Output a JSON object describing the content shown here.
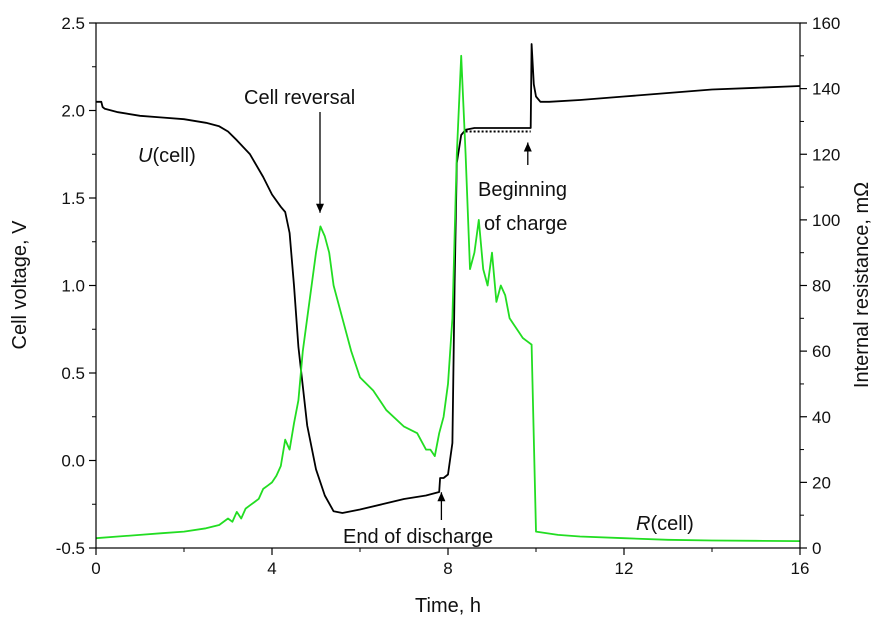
{
  "chart_data": {
    "type": "line",
    "xlabel": "Time, h",
    "ylabel_left": "Cell voltage, V",
    "ylabel_right": "Internal resistance, mΩ",
    "xlim": [
      0,
      16
    ],
    "ylim_left": [
      -0.5,
      2.5
    ],
    "ylim_right": [
      0,
      160
    ],
    "x_ticks": [
      "0",
      "4",
      "8",
      "12",
      "16"
    ],
    "y_left_ticks": [
      "-0.5",
      "0.0",
      "0.5",
      "1.0",
      "1.5",
      "2.0",
      "2.5"
    ],
    "y_right_ticks": [
      "0",
      "20",
      "40",
      "60",
      "80",
      "100",
      "120",
      "140",
      "160"
    ],
    "grid": false,
    "series": [
      {
        "name": "U(cell)",
        "axis": "left",
        "color": "#000000",
        "x": [
          0,
          0.05,
          0.12,
          0.15,
          0.2,
          0.5,
          1.0,
          1.5,
          2.0,
          2.5,
          2.8,
          3.0,
          3.2,
          3.5,
          3.8,
          4.0,
          4.2,
          4.3,
          4.4,
          4.5,
          4.6,
          4.8,
          5.0,
          5.2,
          5.4,
          5.6,
          5.8,
          6.0,
          6.5,
          7.0,
          7.5,
          7.8,
          7.82,
          7.9,
          8.0,
          8.1,
          8.15,
          8.2,
          8.3,
          8.4,
          8.6,
          9.0,
          9.5,
          9.88,
          9.9,
          9.95,
          10.0,
          10.1,
          10.3,
          11,
          12,
          13,
          14,
          15,
          16
        ],
        "y": [
          2.05,
          2.05,
          2.05,
          2.02,
          2.01,
          1.99,
          1.97,
          1.96,
          1.95,
          1.93,
          1.91,
          1.88,
          1.83,
          1.75,
          1.62,
          1.52,
          1.45,
          1.42,
          1.3,
          1.0,
          0.65,
          0.2,
          -0.05,
          -0.2,
          -0.29,
          -0.3,
          -0.29,
          -0.28,
          -0.25,
          -0.22,
          -0.2,
          -0.18,
          -0.1,
          -0.1,
          -0.08,
          0.1,
          1.0,
          1.7,
          1.86,
          1.89,
          1.9,
          1.9,
          1.9,
          1.9,
          2.38,
          2.15,
          2.08,
          2.05,
          2.05,
          2.06,
          2.08,
          2.1,
          2.12,
          2.13,
          2.14
        ]
      },
      {
        "name": "R(cell)",
        "axis": "right",
        "color": "#22dd22",
        "x": [
          0,
          0.5,
          1.0,
          1.5,
          2.0,
          2.5,
          2.8,
          3.0,
          3.1,
          3.2,
          3.3,
          3.4,
          3.5,
          3.6,
          3.7,
          3.8,
          3.9,
          4.0,
          4.1,
          4.2,
          4.3,
          4.4,
          4.5,
          4.6,
          4.7,
          4.8,
          4.9,
          5.0,
          5.1,
          5.2,
          5.3,
          5.4,
          5.6,
          5.8,
          6.0,
          6.3,
          6.6,
          7.0,
          7.3,
          7.5,
          7.6,
          7.7,
          7.8,
          7.9,
          8.0,
          8.1,
          8.2,
          8.3,
          8.4,
          8.5,
          8.6,
          8.7,
          8.8,
          8.9,
          9.0,
          9.1,
          9.2,
          9.3,
          9.4,
          9.5,
          9.6,
          9.7,
          9.8,
          9.9,
          10.0,
          10.5,
          11,
          12,
          13,
          14,
          15,
          16
        ],
        "y": [
          3,
          3.5,
          4,
          4.5,
          5,
          6,
          7,
          9,
          8,
          11,
          9,
          12,
          13,
          14,
          15,
          18,
          19,
          20,
          22,
          25,
          33,
          30,
          38,
          45,
          60,
          70,
          80,
          90,
          98,
          95,
          90,
          80,
          70,
          60,
          52,
          48,
          42,
          37,
          35,
          30,
          30,
          28,
          35,
          40,
          50,
          70,
          120,
          150,
          120,
          85,
          90,
          100,
          85,
          80,
          90,
          75,
          80,
          77,
          70,
          68,
          66,
          64,
          63,
          62,
          5,
          4,
          3.5,
          3,
          2.5,
          2.3,
          2.2,
          2.1
        ]
      },
      {
        "name": "",
        "axis": "left",
        "color": "#000000",
        "style": "dotted",
        "x": [
          8.4,
          9.88
        ],
        "y": [
          1.88,
          1.88
        ]
      }
    ],
    "annotations": [
      {
        "text": "Cell reversal",
        "x": 5.0,
        "y": 1.37,
        "axis": "left"
      },
      {
        "text": "Beginning",
        "line2": "of charge",
        "x": 9.95,
        "y": 1.84,
        "axis": "left"
      },
      {
        "text": "End of discharge",
        "x": 7.85,
        "y": -0.17,
        "axis": "left"
      }
    ]
  }
}
